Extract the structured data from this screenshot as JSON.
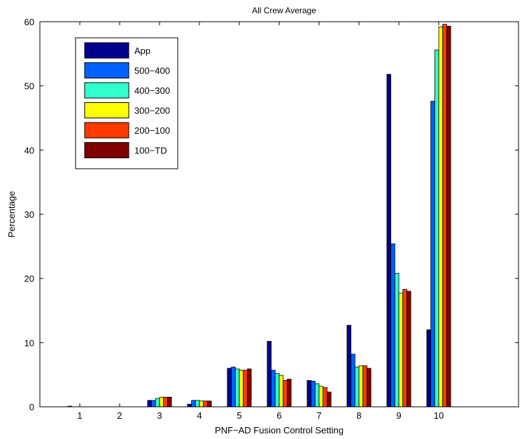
{
  "chart_data": {
    "type": "bar",
    "title": "All Crew Average",
    "xlabel": "PNF−AD Fusion Control Setting",
    "ylabel": "Percentage",
    "ylim": [
      0,
      60
    ],
    "xlim": [
      0,
      12
    ],
    "yticks": [
      0,
      10,
      20,
      30,
      40,
      50,
      60
    ],
    "categories": [
      "1",
      "2",
      "3",
      "4",
      "5",
      "6",
      "7",
      "8",
      "9",
      "10"
    ],
    "legend_position": "top-left",
    "grid": false,
    "series": [
      {
        "name": "App",
        "color": "#00008f",
        "values": [
          0.1,
          0.0,
          1.0,
          0.4,
          6.0,
          10.2,
          4.1,
          12.7,
          51.8,
          12.0
        ]
      },
      {
        "name": "500−400",
        "color": "#0061ff",
        "values": [
          0.0,
          0.0,
          1.0,
          1.0,
          6.2,
          5.7,
          4.0,
          8.2,
          25.4,
          47.6
        ]
      },
      {
        "name": "400−300",
        "color": "#31ffce",
        "values": [
          0.0,
          0.0,
          1.3,
          1.0,
          5.9,
          5.2,
          3.6,
          6.2,
          20.8,
          55.6
        ]
      },
      {
        "name": "300−200",
        "color": "#ffff00",
        "values": [
          0.0,
          0.0,
          1.5,
          0.9,
          5.7,
          4.9,
          3.2,
          6.4,
          17.7,
          59.2
        ]
      },
      {
        "name": "200−100",
        "color": "#ff3a00",
        "values": [
          0.0,
          0.0,
          1.5,
          0.9,
          5.7,
          4.1,
          3.0,
          6.4,
          18.3,
          59.6
        ]
      },
      {
        "name": "100−TD",
        "color": "#800000",
        "values": [
          0.0,
          0.0,
          1.5,
          0.9,
          5.9,
          4.3,
          2.3,
          6.0,
          18.0,
          59.3
        ]
      }
    ]
  }
}
